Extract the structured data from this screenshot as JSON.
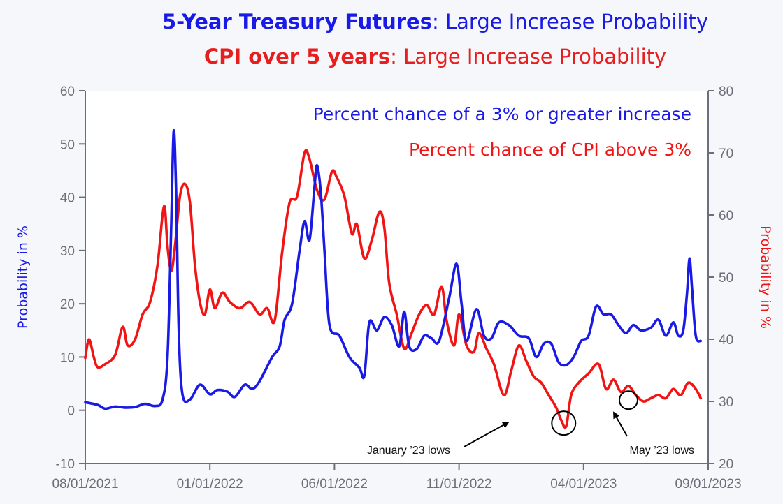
{
  "title": {
    "line1_bold": "5-Year Treasury Futures",
    "line1_rest": ": Large Increase Probability",
    "line2_bold": "CPI over 5 years",
    "line2_rest": ": Large Increase Probability"
  },
  "colors": {
    "blue": "#1a1ae6",
    "red": "#f01414",
    "axis": "#6b6f78"
  },
  "chart_data": {
    "type": "line",
    "x_ticks": [
      {
        "label": "08/01/2021",
        "t": 0
      },
      {
        "label": "01/01/2022",
        "t": 5
      },
      {
        "label": "06/01/2022",
        "t": 10
      },
      {
        "label": "11/01/2022",
        "t": 15
      },
      {
        "label": "04/01/2023",
        "t": 20
      },
      {
        "label": "09/01/2023",
        "t": 25
      }
    ],
    "x_unit": "months since 08/01/2021",
    "xlim": [
      0,
      25
    ],
    "y_left": {
      "label": "Probability in %",
      "lim": [
        -10,
        60
      ],
      "ticks": [
        -10,
        0,
        10,
        20,
        30,
        40,
        50,
        60
      ]
    },
    "y_right": {
      "label": "Probability in %",
      "lim": [
        20,
        80
      ],
      "ticks": [
        20,
        30,
        40,
        50,
        60,
        70,
        80
      ]
    },
    "series": [
      {
        "name": "Percent chance of a 3% or greater increase",
        "axis": "left",
        "color": "#1a1ae6",
        "points": [
          [
            0,
            1.5
          ],
          [
            0.5,
            1
          ],
          [
            0.8,
            0.3
          ],
          [
            1.2,
            0.7
          ],
          [
            1.6,
            0.5
          ],
          [
            2,
            0.6
          ],
          [
            2.4,
            1.2
          ],
          [
            2.8,
            0.8
          ],
          [
            3.1,
            2
          ],
          [
            3.3,
            10
          ],
          [
            3.45,
            35
          ],
          [
            3.55,
            52.5
          ],
          [
            3.65,
            40
          ],
          [
            3.75,
            15
          ],
          [
            3.9,
            3
          ],
          [
            4.2,
            2
          ],
          [
            4.6,
            4.8
          ],
          [
            5,
            3
          ],
          [
            5.3,
            3.8
          ],
          [
            5.7,
            3.5
          ],
          [
            6,
            2.5
          ],
          [
            6.4,
            4.8
          ],
          [
            6.7,
            4
          ],
          [
            7,
            5.5
          ],
          [
            7.5,
            10
          ],
          [
            7.8,
            12
          ],
          [
            8,
            17
          ],
          [
            8.3,
            20
          ],
          [
            8.6,
            30
          ],
          [
            8.8,
            35.5
          ],
          [
            9,
            32
          ],
          [
            9.2,
            42
          ],
          [
            9.3,
            46
          ],
          [
            9.45,
            41
          ],
          [
            9.6,
            30
          ],
          [
            9.8,
            16
          ],
          [
            10.2,
            14
          ],
          [
            10.6,
            10
          ],
          [
            11,
            8
          ],
          [
            11.2,
            6.5
          ],
          [
            11.4,
            16.5
          ],
          [
            11.7,
            15
          ],
          [
            12,
            17.5
          ],
          [
            12.3,
            16
          ],
          [
            12.6,
            12
          ],
          [
            12.8,
            18.5
          ],
          [
            13,
            12
          ],
          [
            13.3,
            11.5
          ],
          [
            13.6,
            14
          ],
          [
            13.9,
            13.5
          ],
          [
            14.2,
            13
          ],
          [
            14.6,
            21
          ],
          [
            14.9,
            27.5
          ],
          [
            15.1,
            20
          ],
          [
            15.3,
            13
          ],
          [
            15.7,
            19
          ],
          [
            16,
            14
          ],
          [
            16.3,
            13.5
          ],
          [
            16.6,
            16.5
          ],
          [
            17,
            16
          ],
          [
            17.4,
            14
          ],
          [
            17.8,
            13.5
          ],
          [
            18.1,
            10
          ],
          [
            18.4,
            12.5
          ],
          [
            18.7,
            12.5
          ],
          [
            19,
            9
          ],
          [
            19.3,
            8.5
          ],
          [
            19.6,
            10
          ],
          [
            19.9,
            13
          ],
          [
            20.2,
            14
          ],
          [
            20.5,
            19.5
          ],
          [
            20.8,
            18
          ],
          [
            21.1,
            18
          ],
          [
            21.4,
            16
          ],
          [
            21.7,
            14.5
          ],
          [
            22,
            16
          ],
          [
            22.3,
            15
          ],
          [
            22.7,
            15.5
          ],
          [
            23,
            17
          ],
          [
            23.3,
            14
          ],
          [
            23.6,
            16.5
          ],
          [
            23.8,
            14
          ],
          [
            24,
            15
          ],
          [
            24.15,
            22
          ],
          [
            24.25,
            28.5
          ],
          [
            24.35,
            23
          ],
          [
            24.5,
            14
          ],
          [
            24.7,
            13
          ]
        ]
      },
      {
        "name": "Percent chance of CPI above 3%",
        "axis": "right",
        "color": "#f01414",
        "points": [
          [
            0,
            37
          ],
          [
            0.15,
            40
          ],
          [
            0.35,
            37
          ],
          [
            0.5,
            35.5
          ],
          [
            0.8,
            36
          ],
          [
            1.2,
            37.5
          ],
          [
            1.5,
            42
          ],
          [
            1.7,
            39
          ],
          [
            2,
            40
          ],
          [
            2.3,
            44
          ],
          [
            2.6,
            46
          ],
          [
            2.9,
            52
          ],
          [
            3.1,
            60
          ],
          [
            3.2,
            61
          ],
          [
            3.3,
            55
          ],
          [
            3.45,
            51
          ],
          [
            3.6,
            55
          ],
          [
            3.8,
            63
          ],
          [
            4,
            65
          ],
          [
            4.2,
            62
          ],
          [
            4.4,
            52
          ],
          [
            4.6,
            46
          ],
          [
            4.8,
            44
          ],
          [
            5,
            48
          ],
          [
            5.2,
            45
          ],
          [
            5.5,
            47.5
          ],
          [
            5.8,
            46
          ],
          [
            6.2,
            45
          ],
          [
            6.6,
            46
          ],
          [
            7,
            44
          ],
          [
            7.3,
            45
          ],
          [
            7.6,
            43
          ],
          [
            7.9,
            54
          ],
          [
            8.2,
            62
          ],
          [
            8.5,
            63
          ],
          [
            8.8,
            70
          ],
          [
            9,
            69
          ],
          [
            9.3,
            64
          ],
          [
            9.6,
            62.5
          ],
          [
            9.9,
            67
          ],
          [
            10.1,
            66
          ],
          [
            10.4,
            63
          ],
          [
            10.7,
            57
          ],
          [
            10.9,
            58.5
          ],
          [
            11.2,
            53
          ],
          [
            11.5,
            56
          ],
          [
            11.8,
            60.5
          ],
          [
            12,
            58
          ],
          [
            12.2,
            49
          ],
          [
            12.5,
            44
          ],
          [
            12.8,
            38.5
          ],
          [
            13.1,
            41
          ],
          [
            13.4,
            44
          ],
          [
            13.7,
            45.5
          ],
          [
            14,
            44
          ],
          [
            14.3,
            48.5
          ],
          [
            14.5,
            43
          ],
          [
            14.8,
            39
          ],
          [
            15,
            44
          ],
          [
            15.3,
            39
          ],
          [
            15.6,
            38
          ],
          [
            15.8,
            41
          ],
          [
            16.1,
            38.5
          ],
          [
            16.4,
            36
          ],
          [
            16.8,
            31
          ],
          [
            17.1,
            35
          ],
          [
            17.4,
            39
          ],
          [
            17.7,
            36.5
          ],
          [
            18,
            34
          ],
          [
            18.3,
            33
          ],
          [
            18.6,
            31
          ],
          [
            18.9,
            29
          ],
          [
            19.1,
            27
          ],
          [
            19.3,
            26
          ],
          [
            19.5,
            31
          ],
          [
            19.8,
            33
          ],
          [
            20.2,
            34.5
          ],
          [
            20.6,
            36
          ],
          [
            20.9,
            32
          ],
          [
            21.2,
            33.5
          ],
          [
            21.5,
            31.5
          ],
          [
            21.8,
            32.5
          ],
          [
            22.1,
            31
          ],
          [
            22.4,
            30
          ],
          [
            22.7,
            30.5
          ],
          [
            23,
            31
          ],
          [
            23.3,
            30.5
          ],
          [
            23.6,
            32
          ],
          [
            23.9,
            31
          ],
          [
            24.2,
            33
          ],
          [
            24.5,
            32
          ],
          [
            24.7,
            30.5
          ]
        ]
      }
    ],
    "legend": [
      {
        "text": "Percent chance of a 3% or greater increase",
        "color": "#1a1ae6"
      },
      {
        "text": "Percent chance of CPI above 3%",
        "color": "#f01414"
      }
    ],
    "annotations": [
      {
        "text": "January ’23 lows",
        "t": 19.2,
        "y_right": 26.5
      },
      {
        "text": "May ’23 lows",
        "t": 21.8,
        "y_right": 30.2
      }
    ]
  }
}
